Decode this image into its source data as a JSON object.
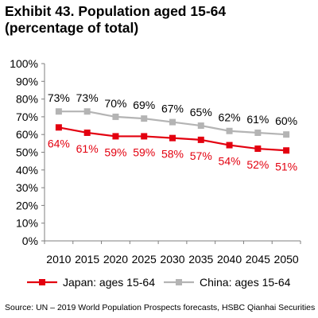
{
  "title_line1": "Exhibit 43. Population aged 15-64",
  "title_line2": "(percentage of total)",
  "source": "Source: UN – 2019 World Population Prospects forecasts, HSBC Qianhai Securities",
  "chart_data": {
    "type": "line",
    "title": "Exhibit 43. Population aged 15-64 (percentage of total)",
    "x": [
      "2010",
      "2015",
      "2020",
      "2025",
      "2030",
      "2035",
      "2040",
      "2045",
      "2050"
    ],
    "series": [
      {
        "name": "Japan: ages 15-64",
        "values": [
          64,
          61,
          59,
          59,
          58,
          57,
          54,
          52,
          51
        ],
        "data_labels": [
          "64%",
          "61%",
          "59%",
          "59%",
          "58%",
          "57%",
          "54%",
          "52%",
          "51%"
        ],
        "color": "#e3000f",
        "marker": "square"
      },
      {
        "name": "China: ages 15-64",
        "values": [
          73,
          73,
          70,
          69,
          67,
          65,
          62,
          61,
          60
        ],
        "data_labels": [
          "73%",
          "73%",
          "70%",
          "69%",
          "67%",
          "65%",
          "62%",
          "61%",
          "60%"
        ],
        "color": "#b4b4b4",
        "marker": "square"
      }
    ],
    "ylim": [
      0,
      100
    ],
    "yticks": [
      "0%",
      "10%",
      "20%",
      "30%",
      "40%",
      "50%",
      "60%",
      "70%",
      "80%",
      "90%",
      "100%"
    ],
    "grid": false,
    "legend_position": "bottom"
  }
}
